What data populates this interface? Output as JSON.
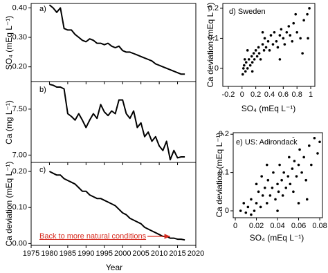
{
  "chart_data": [
    {
      "type": "line",
      "label": "a)",
      "ylabel": "SO₄ (mEq L⁻¹)",
      "color": "#000000",
      "x": [
        1980,
        1981,
        1982,
        1983,
        1984,
        1985,
        1986,
        1987,
        1988,
        1989,
        1990,
        1991,
        1992,
        1993,
        1994,
        1995,
        1996,
        1997,
        1998,
        1999,
        2000,
        2001,
        2002,
        2003,
        2004,
        2005,
        2006,
        2007,
        2008,
        2009,
        2010,
        2011,
        2012,
        2013,
        2014,
        2015,
        2016,
        2017
      ],
      "values": [
        0.41,
        0.4,
        0.385,
        0.4,
        0.33,
        0.325,
        0.325,
        0.31,
        0.3,
        0.29,
        0.285,
        0.295,
        0.29,
        0.28,
        0.28,
        0.275,
        0.28,
        0.27,
        0.265,
        0.27,
        0.255,
        0.25,
        0.25,
        0.245,
        0.24,
        0.235,
        0.23,
        0.225,
        0.22,
        0.21,
        0.205,
        0.2,
        0.195,
        0.19,
        0.185,
        0.18,
        0.175,
        0.175
      ],
      "xlim": [
        1975,
        2020
      ],
      "ylim": [
        0.15,
        0.415
      ],
      "yticks": [
        {
          "value": 0.2,
          "label": "0.20"
        },
        {
          "value": 0.3,
          "label": "0.30"
        },
        {
          "value": 0.4,
          "label": "0.40"
        }
      ]
    },
    {
      "type": "line",
      "label": "b)",
      "ylabel": "Ca (mg L⁻¹)",
      "color": "#000000",
      "x": [
        1980,
        1981,
        1982,
        1983,
        1984,
        1985,
        1986,
        1987,
        1988,
        1989,
        1990,
        1991,
        1992,
        1993,
        1994,
        1995,
        1996,
        1997,
        1998,
        1999,
        2000,
        2001,
        2002,
        2003,
        2004,
        2005,
        2006,
        2007,
        2008,
        2009,
        2010,
        2011,
        2012,
        2013,
        2014,
        2015,
        2016,
        2017
      ],
      "values": [
        7.77,
        7.76,
        7.74,
        7.74,
        7.72,
        7.45,
        7.42,
        7.38,
        7.45,
        7.38,
        7.3,
        7.38,
        7.45,
        7.4,
        7.55,
        7.47,
        7.43,
        7.48,
        7.45,
        7.6,
        7.6,
        7.45,
        7.4,
        7.48,
        7.3,
        7.35,
        7.2,
        7.25,
        7.15,
        7.2,
        7.1,
        7.05,
        7.15,
        6.95,
        7.05,
        6.97,
        6.98,
        6.98
      ],
      "xlim": [
        1975,
        2020
      ],
      "ylim": [
        6.92,
        7.8
      ],
      "yticks": [
        {
          "value": 7.0,
          "label": "7.00"
        },
        {
          "value": 7.5,
          "label": "7.50"
        }
      ]
    },
    {
      "type": "line",
      "label": "c)",
      "ylabel": "Ca deviation (mEq L⁻¹)",
      "xlabel": "Year",
      "color": "#000000",
      "annotation": "Back to more natural conditions",
      "annotation_color": "#d62a1e",
      "x": [
        1980,
        1981,
        1982,
        1983,
        1984,
        1985,
        1986,
        1987,
        1988,
        1989,
        1990,
        1991,
        1992,
        1993,
        1994,
        1995,
        1996,
        1997,
        1998,
        1999,
        2000,
        2001,
        2002,
        2003,
        2004,
        2005,
        2006,
        2007,
        2008,
        2009,
        2010,
        2011,
        2012,
        2013,
        2014,
        2015,
        2016,
        2017
      ],
      "values": [
        0.2,
        0.195,
        0.19,
        0.19,
        0.18,
        0.175,
        0.17,
        0.165,
        0.155,
        0.145,
        0.145,
        0.135,
        0.13,
        0.125,
        0.125,
        0.12,
        0.115,
        0.11,
        0.105,
        0.095,
        0.085,
        0.08,
        0.07,
        0.065,
        0.06,
        0.055,
        0.045,
        0.04,
        0.035,
        0.03,
        0.025,
        0.02,
        0.02,
        0.015,
        0.015,
        0.012,
        0.012,
        0.01
      ],
      "xlim": [
        1975,
        2020
      ],
      "ylim": [
        -0.005,
        0.225
      ],
      "xticks": [
        1975,
        1980,
        1985,
        1990,
        1995,
        2000,
        2005,
        2010,
        2015,
        2020
      ],
      "yticks": [
        {
          "value": 0,
          "label": "0.00"
        },
        {
          "value": 0.1,
          "label": "0.10"
        },
        {
          "value": 0.2,
          "label": "0.20"
        }
      ]
    },
    {
      "type": "scatter",
      "label": "d) Sweden",
      "xlabel": "SO₄ (mEq L⁻¹)",
      "ylabel": "Ca deviation (mEq L⁻¹)",
      "color": "#000000",
      "x": [
        0.02,
        0.03,
        0.05,
        0.06,
        0.08,
        0.1,
        0.12,
        0.14,
        0.15,
        0.17,
        0.18,
        0.2,
        0.22,
        0.24,
        0.25,
        0.27,
        0.3,
        0.32,
        0.33,
        0.35,
        0.38,
        0.4,
        0.42,
        0.45,
        0.47,
        0.5,
        0.52,
        0.55,
        0.57,
        0.6,
        0.62,
        0.65,
        0.68,
        0.7,
        0.73,
        0.75,
        0.8,
        0.85,
        0.9,
        0.95,
        0.98,
        0.96,
        0.88,
        0.08,
        0.04,
        0.55,
        0.15,
        0.78,
        0.01,
        0.3
      ],
      "values": [
        0.0,
        0.01,
        -0.01,
        0.02,
        0.0,
        0.03,
        0.01,
        0.04,
        0.02,
        0.05,
        0.03,
        0.06,
        0.04,
        0.07,
        0.05,
        0.03,
        0.08,
        0.06,
        0.1,
        0.07,
        0.09,
        0.06,
        0.11,
        0.08,
        0.12,
        0.09,
        0.07,
        0.11,
        0.13,
        0.1,
        0.08,
        0.12,
        0.14,
        0.11,
        0.09,
        0.15,
        0.12,
        0.1,
        0.16,
        0.18,
        0.2,
        0.1,
        0.05,
        0.06,
        0.03,
        0.03,
        -0.01,
        0.18,
        -0.02,
        0.12
      ],
      "xlim": [
        -0.28,
        1.06
      ],
      "ylim": [
        -0.06,
        0.216
      ],
      "xticks": [
        -0.2,
        0,
        0.2,
        0.4,
        0.6,
        0.8,
        1
      ],
      "yticks": [
        0,
        0.1,
        0.2
      ]
    },
    {
      "type": "scatter",
      "label": "e) US: Adirondack",
      "xlabel": "SO₄ (mEq L⁻¹)",
      "ylabel": "Ca deviation (mEq L⁻¹)",
      "color": "#000000",
      "x": [
        0.005,
        0.008,
        0.01,
        0.012,
        0.015,
        0.018,
        0.02,
        0.022,
        0.024,
        0.026,
        0.028,
        0.03,
        0.031,
        0.033,
        0.035,
        0.036,
        0.038,
        0.04,
        0.041,
        0.042,
        0.044,
        0.045,
        0.046,
        0.048,
        0.05,
        0.051,
        0.052,
        0.054,
        0.055,
        0.056,
        0.058,
        0.06,
        0.061,
        0.063,
        0.065,
        0.067,
        0.07,
        0.072,
        0.075,
        0.078,
        0.08,
        0.025,
        0.03,
        0.02,
        0.045,
        0.055,
        0.068,
        0.04,
        0.015,
        0.06
      ],
      "values": [
        0.0,
        0.02,
        -0.005,
        0.01,
        0.03,
        0.0,
        0.02,
        0.05,
        0.01,
        0.04,
        0.06,
        0.02,
        0.08,
        0.04,
        0.06,
        0.1,
        0.03,
        0.07,
        0.05,
        0.12,
        0.08,
        0.04,
        0.1,
        0.06,
        0.09,
        0.14,
        0.07,
        0.11,
        0.05,
        0.13,
        0.09,
        0.12,
        0.16,
        0.1,
        0.14,
        0.08,
        0.17,
        0.12,
        0.19,
        0.15,
        0.18,
        0.09,
        0.12,
        0.07,
        0.17,
        0.19,
        0.03,
        0.0,
        -0.01,
        0.02
      ],
      "xlim": [
        -0.002,
        0.0826
      ],
      "ylim": [
        -0.018,
        0.204
      ],
      "xticks": [
        0,
        0.02,
        0.04,
        0.06,
        0.08
      ],
      "yticks": [
        0,
        0.1,
        0.2
      ]
    }
  ]
}
